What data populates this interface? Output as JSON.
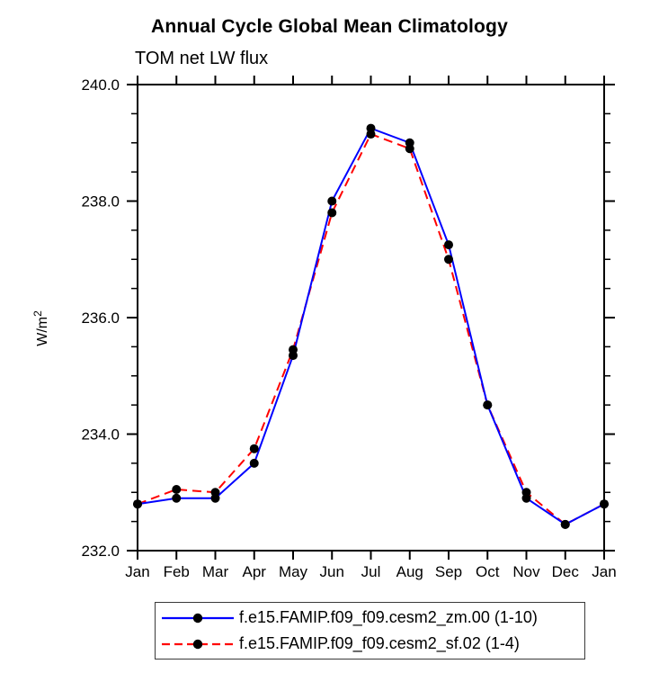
{
  "title": "Annual Cycle Global Mean Climatology",
  "subtitle": "TOM net LW flux",
  "ylabel_parts": {
    "base": "W/m",
    "sup": "2"
  },
  "colors": {
    "axis": "#000000",
    "marker": "#000000",
    "series1": "#0000ff",
    "series2": "#ff0000",
    "legend_border": "#3a3a3a"
  },
  "chart_data": {
    "type": "line",
    "title": "Annual Cycle Global Mean Climatology",
    "subtitle": "TOM net LW flux",
    "ylabel": "W/m²",
    "xlabel": "",
    "categories": [
      "Jan",
      "Feb",
      "Mar",
      "Apr",
      "May",
      "Jun",
      "Jul",
      "Aug",
      "Sep",
      "Oct",
      "Nov",
      "Dec",
      "Jan"
    ],
    "series": [
      {
        "name": "f.e15.FAMIP.f09_f09.cesm2_zm.00 (1-10)",
        "color": "#0000ff",
        "dash": "solid",
        "marker": "black-dot",
        "values": [
          232.8,
          232.9,
          232.9,
          233.5,
          235.35,
          238.0,
          239.25,
          239.0,
          237.25,
          234.5,
          232.9,
          232.45,
          232.8
        ]
      },
      {
        "name": "f.e15.FAMIP.f09_f09.cesm2_sf.02 (1-4)",
        "color": "#ff0000",
        "dash": "dashed",
        "marker": "black-dot",
        "values": [
          232.8,
          233.05,
          233.0,
          233.75,
          235.45,
          237.8,
          239.15,
          238.9,
          237.0,
          234.5,
          233.0,
          232.45,
          232.8
        ]
      }
    ],
    "ylim": [
      232.0,
      240.0
    ],
    "yticks_major": [
      "232.0",
      "234.0",
      "236.0",
      "238.0",
      "240.0"
    ],
    "ytick_minor_step": 0.5,
    "grid": false,
    "legend_position": "bottom"
  }
}
